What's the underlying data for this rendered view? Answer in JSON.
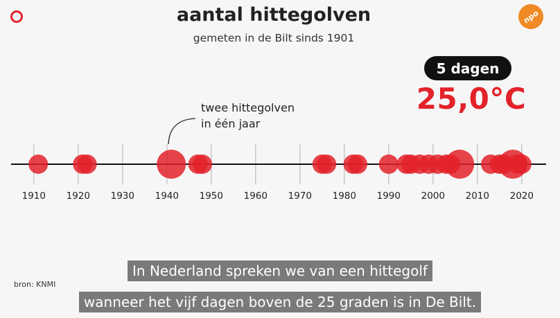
{
  "title": "aantal hittegolven",
  "subtitle": "gemeten in de Bilt sinds 1901",
  "badge": "5 dagen",
  "temperature": "25,0°C",
  "logo_left": "red-ring-logo",
  "logo_right": {
    "text": "npo"
  },
  "annotation": {
    "line1": "twee hittegolven",
    "line2": "in één jaar"
  },
  "source": "bron: KNMI",
  "subtitles": [
    "In Nederland spreken we van een hittegolf",
    "wanneer het vijf dagen boven de 25 graden is in De Bilt."
  ],
  "colors": {
    "accent": "#e3222a",
    "dark_red": "#b01217",
    "axis": "#111111",
    "grid": "#bdbdbd"
  },
  "chart_data": {
    "type": "scatter",
    "title": "aantal hittegolven",
    "subtitle": "gemeten in de Bilt sinds 1901",
    "x_ticks": [
      1910,
      1920,
      1930,
      1940,
      1950,
      1960,
      1970,
      1980,
      1990,
      2000,
      2010,
      2020
    ],
    "xlim": [
      1901,
      2022
    ],
    "grid": true,
    "annotation": {
      "year": 1941,
      "text": "twee hittegolven in één jaar"
    },
    "heatwaves": [
      {
        "year": 1911,
        "count": 1
      },
      {
        "year": 1921,
        "count": 1
      },
      {
        "year": 1922,
        "count": 1
      },
      {
        "year": 1941,
        "count": 2
      },
      {
        "year": 1947,
        "count": 1
      },
      {
        "year": 1948,
        "count": 1
      },
      {
        "year": 1975,
        "count": 1
      },
      {
        "year": 1976,
        "count": 1
      },
      {
        "year": 1982,
        "count": 1
      },
      {
        "year": 1983,
        "count": 1
      },
      {
        "year": 1990,
        "count": 1
      },
      {
        "year": 1994,
        "count": 1
      },
      {
        "year": 1995,
        "count": 1
      },
      {
        "year": 1997,
        "count": 1
      },
      {
        "year": 1999,
        "count": 1
      },
      {
        "year": 2001,
        "count": 1
      },
      {
        "year": 2003,
        "count": 1
      },
      {
        "year": 2004,
        "count": 1
      },
      {
        "year": 2006,
        "count": 2
      },
      {
        "year": 2013,
        "count": 1
      },
      {
        "year": 2015,
        "count": 1
      },
      {
        "year": 2016,
        "count": 1
      },
      {
        "year": 2018,
        "count": 2
      },
      {
        "year": 2019,
        "count": 1
      },
      {
        "year": 2020,
        "count": 1
      }
    ]
  }
}
